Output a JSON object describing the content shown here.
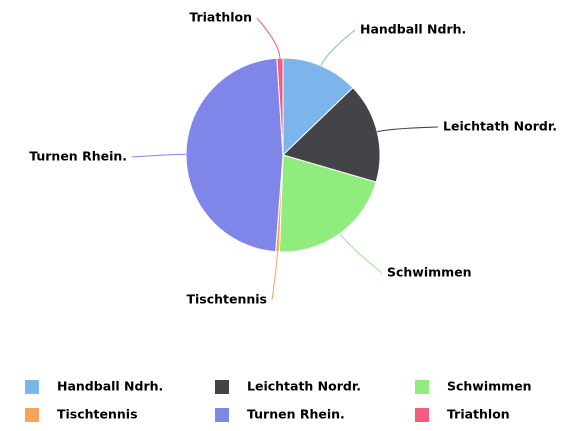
{
  "chart_data": {
    "type": "pie",
    "categories": [
      "Handball Ndrh.",
      "Leichtath Nordr.",
      "Schwimmen",
      "Tischtennis",
      "Turnen Rhein.",
      "Triathlon"
    ],
    "values": [
      12.8,
      16.7,
      21.1,
      0.6,
      47.8,
      1.0
    ],
    "colors": [
      "#7cb5ec",
      "#434348",
      "#90ed7d",
      "#f7a35c",
      "#8085e9",
      "#f15c80"
    ],
    "legend": "bottom"
  }
}
